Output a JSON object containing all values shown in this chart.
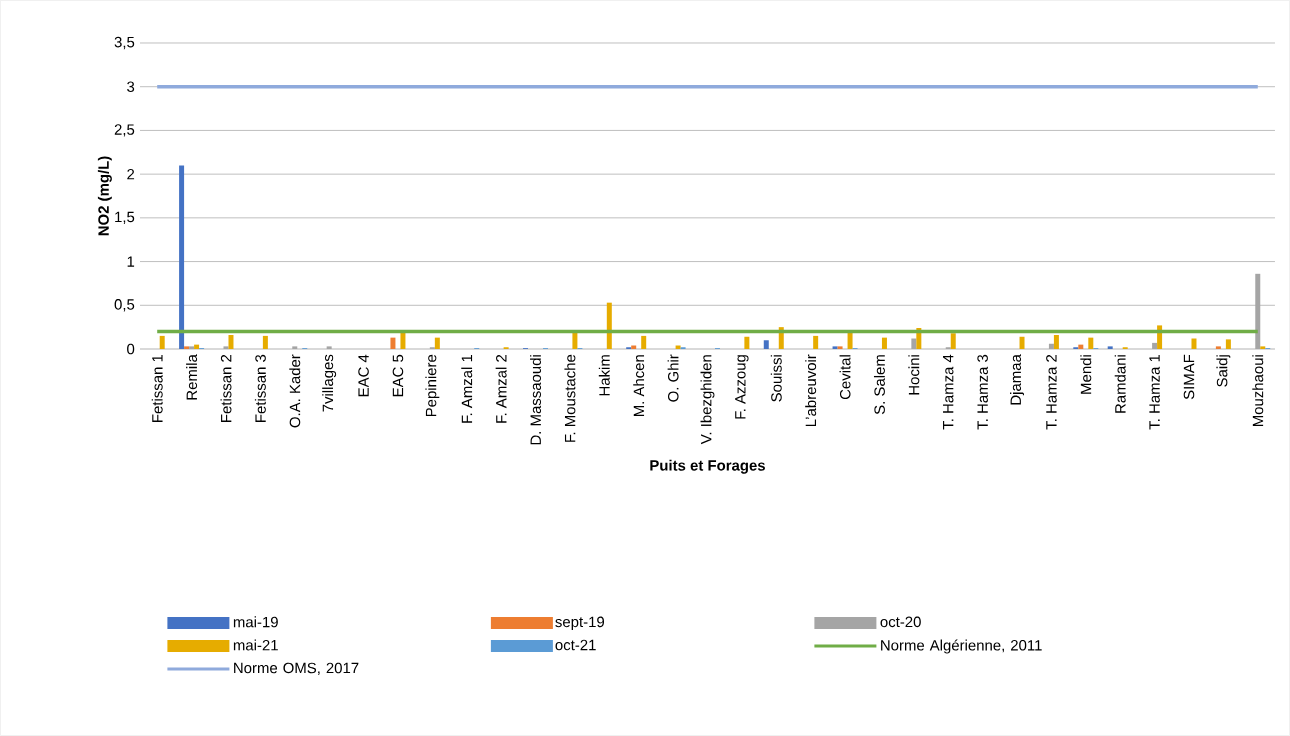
{
  "chart_data": {
    "type": "bar",
    "xlabel": "Puits et Forages",
    "ylabel": "NO2 (mg/L)",
    "categories": [
      "Fetissan 1",
      "Remila",
      "Fetissan 2",
      "Fetissan 3",
      "O.A. Kader",
      "7villages",
      "EAC 4",
      "EAC 5",
      "Pepiniere",
      "F. Amzal 1",
      "F. Amzal 2",
      "D. Massaoudi",
      "F. Moustache",
      "Hakim",
      "M. Ahcen",
      "O. Ghir",
      "V. Ibezghiden",
      "F. Azzoug",
      "Souissi",
      "L’abreuvoir",
      "Cevital",
      "S. Salem",
      "Hocini",
      "T. Hamza 4",
      "T. Hamza 3",
      "Djamaa",
      "T. Hamza 2",
      "Mendi",
      "Ramdani",
      "T. Hamza 1",
      "SIMAF",
      "Saidj",
      "Mouzhaoui"
    ],
    "series": [
      {
        "name": "mai-19",
        "color": "#4472c4",
        "values": [
          null,
          2.1,
          null,
          null,
          null,
          null,
          null,
          null,
          null,
          null,
          null,
          0.01,
          null,
          null,
          0.02,
          null,
          null,
          null,
          0.1,
          null,
          0.03,
          null,
          null,
          null,
          null,
          null,
          null,
          0.02,
          0.03,
          null,
          null,
          null,
          null
        ]
      },
      {
        "name": "sept-19",
        "color": "#ed7d31",
        "values": [
          null,
          0.03,
          null,
          null,
          null,
          null,
          null,
          0.13,
          null,
          null,
          null,
          null,
          null,
          null,
          0.04,
          null,
          null,
          null,
          null,
          null,
          0.03,
          null,
          null,
          null,
          null,
          null,
          null,
          0.05,
          null,
          null,
          null,
          0.03,
          null
        ]
      },
      {
        "name": "oct-20",
        "color": "#a5a5a5",
        "values": [
          null,
          0.03,
          0.03,
          null,
          0.03,
          0.03,
          null,
          null,
          0.02,
          null,
          null,
          null,
          null,
          null,
          null,
          null,
          null,
          null,
          null,
          null,
          null,
          null,
          0.12,
          0.02,
          null,
          null,
          0.06,
          null,
          null,
          0.07,
          null,
          null,
          0.86
        ]
      },
      {
        "name": "mai-21",
        "color": "#e6ac00",
        "values": [
          0.15,
          0.05,
          0.16,
          0.15,
          null,
          null,
          null,
          0.19,
          0.13,
          null,
          0.02,
          null,
          0.19,
          0.53,
          0.15,
          0.04,
          null,
          0.14,
          0.25,
          0.15,
          0.19,
          0.13,
          0.24,
          0.18,
          null,
          0.14,
          0.16,
          0.13,
          0.02,
          0.27,
          0.12,
          0.11,
          0.03
        ]
      },
      {
        "name": "oct-21",
        "color": "#5b9bd5",
        "values": [
          null,
          0.01,
          null,
          null,
          0.01,
          null,
          null,
          null,
          null,
          0.01,
          null,
          0.01,
          0.01,
          null,
          null,
          0.02,
          0.01,
          null,
          null,
          null,
          0.01,
          null,
          null,
          null,
          null,
          null,
          null,
          0.01,
          null,
          null,
          null,
          null,
          0.01
        ]
      }
    ],
    "ylim": [
      0,
      3.5
    ],
    "yticks": [
      0,
      {
        "value": 0.5,
        "label": "0,5"
      },
      1,
      {
        "value": 1.5,
        "label": "1,5"
      },
      2,
      {
        "value": 2.5,
        "label": "2,5"
      },
      3,
      {
        "value": 3.5,
        "label": "3,5"
      }
    ],
    "grid": "y",
    "legend": "bottom",
    "ref_lines": [
      {
        "axis": "y",
        "value": 0.2,
        "label": "Norme Algérienne, 2011",
        "color": "#70ad47"
      },
      {
        "axis": "y",
        "value": 3,
        "label": "Norme OMS, 2017",
        "color": "#8faadc"
      }
    ]
  }
}
